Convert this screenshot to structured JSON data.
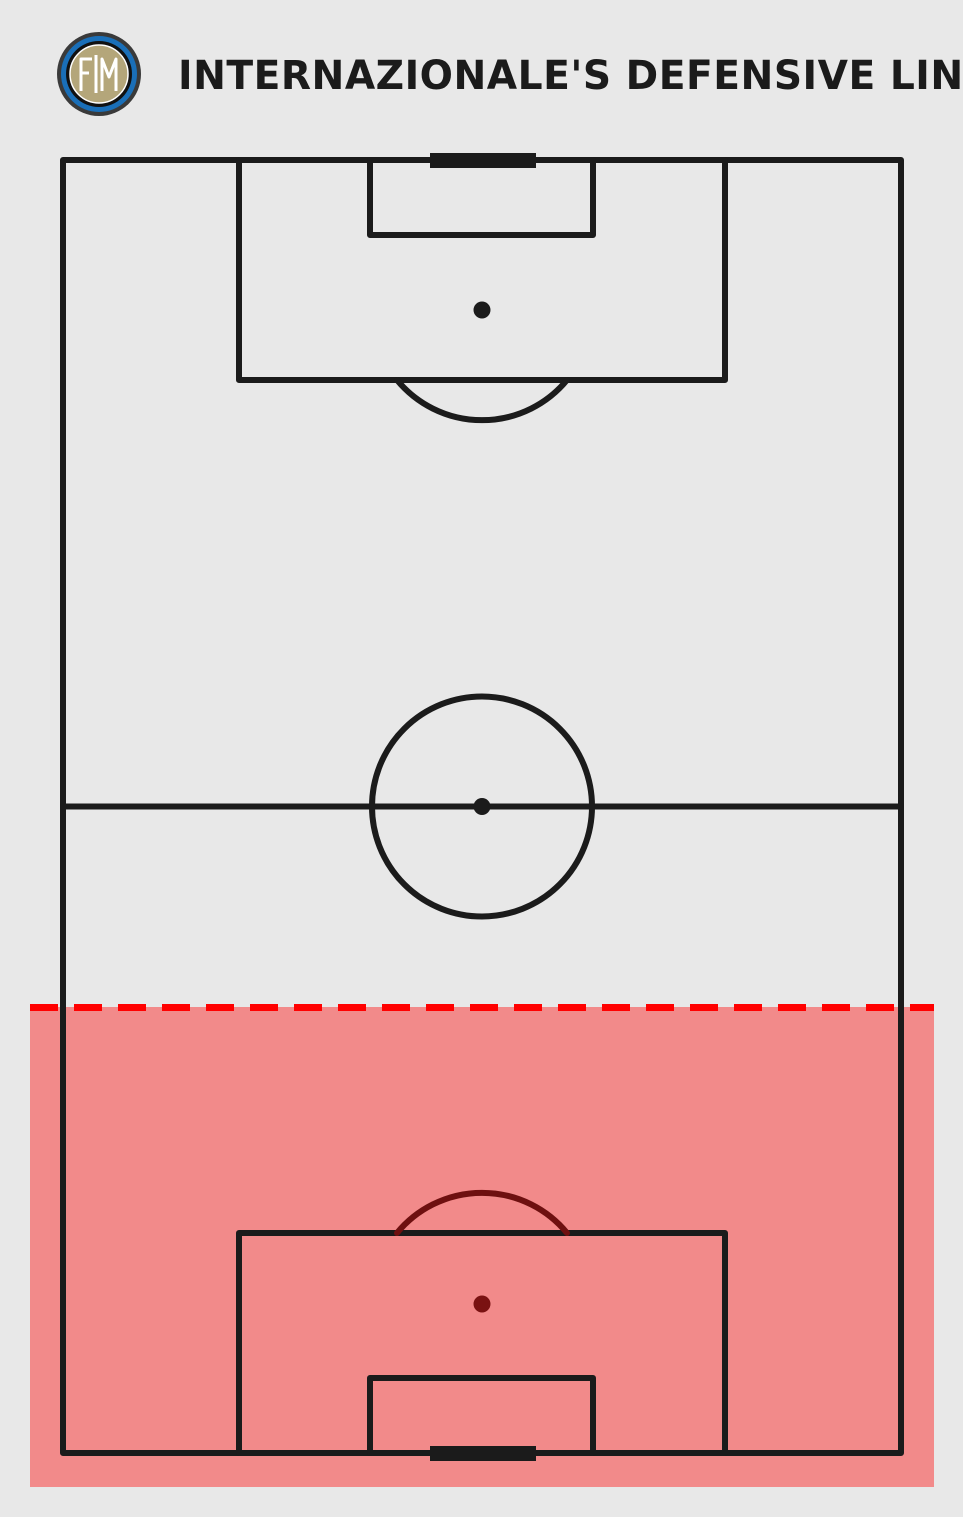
{
  "title": "Internazionale's Defensive Line",
  "crest": {
    "icon": "inter-milan-crest-icon",
    "letters": "FCIM",
    "colors": {
      "outer_ring": "#3a3a3a",
      "blue_ring": "#1a6fb8",
      "inner_ring": "#111111",
      "gold": "#b4a67a"
    }
  },
  "pitch": {
    "orientation": "vertical",
    "line_color": "#1b1b1b",
    "background": "#e8e8e8"
  },
  "defensive_line": {
    "line_color": "#ff0000",
    "line_style": "dashed",
    "zone_color": "#f28a8a",
    "position_fraction_from_own_goal_line": 0.344
  }
}
